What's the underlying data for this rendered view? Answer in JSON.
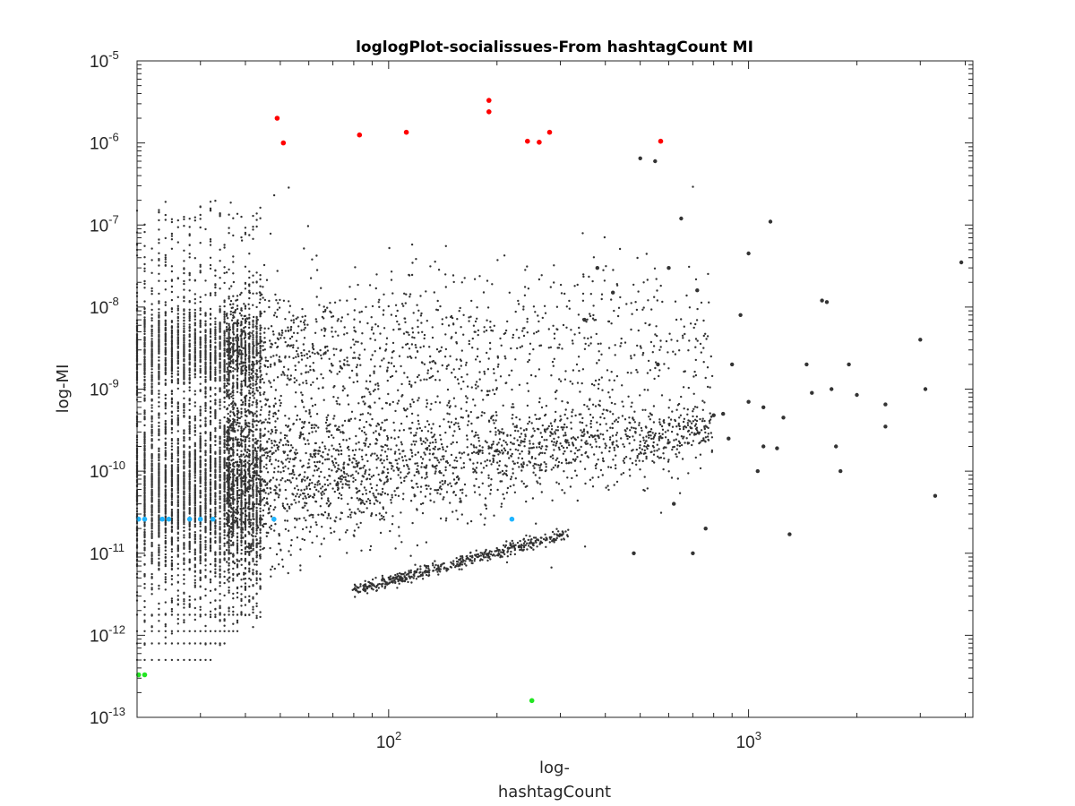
{
  "chart_data": {
    "type": "scatter",
    "title": "loglogPlot-socialissues-From hashtagCount MI",
    "xlabel_lines": [
      "log-",
      "hashtagCount"
    ],
    "ylabel": "log-MI",
    "xscale": "log",
    "yscale": "log",
    "xlim": [
      20,
      4200
    ],
    "ylim": [
      1e-13,
      1e-05
    ],
    "x_ticks": [
      {
        "value": 100,
        "base": "10",
        "exp": "2"
      },
      {
        "value": 1000,
        "base": "10",
        "exp": "3"
      }
    ],
    "y_ticks": [
      {
        "value": 1e-13,
        "base": "10",
        "exp": "-13"
      },
      {
        "value": 1e-12,
        "base": "10",
        "exp": "-12"
      },
      {
        "value": 1e-11,
        "base": "10",
        "exp": "-11"
      },
      {
        "value": 1e-10,
        "base": "10",
        "exp": "-10"
      },
      {
        "value": 1e-09,
        "base": "10",
        "exp": "-9"
      },
      {
        "value": 1e-08,
        "base": "10",
        "exp": "-8"
      },
      {
        "value": 1e-07,
        "base": "10",
        "exp": "-7"
      },
      {
        "value": 1e-06,
        "base": "10",
        "exp": "-6"
      },
      {
        "value": 1e-05,
        "base": "10",
        "exp": "-5"
      }
    ],
    "grid": false,
    "box": true,
    "series": [
      {
        "color": "#333333",
        "marker_size": 2.2,
        "note_bulk": "dense cloud of dark points (tens of thousands)",
        "points": [
          [
            3900,
            3.5e-08
          ],
          [
            3000,
            4e-09
          ],
          [
            3100,
            1e-09
          ],
          [
            3300,
            5e-11
          ],
          [
            2400,
            6.5e-10
          ],
          [
            2400,
            3.5e-10
          ],
          [
            2000,
            8.5e-10
          ],
          [
            1900,
            2e-09
          ],
          [
            1600,
            1.2e-08
          ],
          [
            1650,
            1.15e-08
          ],
          [
            1700,
            1e-09
          ],
          [
            1750,
            2e-10
          ],
          [
            1150,
            1.1e-07
          ],
          [
            1000,
            4.5e-08
          ],
          [
            900,
            2e-09
          ],
          [
            950,
            8e-09
          ],
          [
            1100,
            2e-10
          ],
          [
            1200,
            1.9e-10
          ],
          [
            1250,
            4.5e-10
          ],
          [
            1300,
            1.7e-11
          ],
          [
            1800,
            1e-10
          ],
          [
            1450,
            2e-09
          ],
          [
            1500,
            9e-10
          ],
          [
            700,
            1e-11
          ],
          [
            760,
            2e-11
          ],
          [
            720,
            1.6e-08
          ],
          [
            800,
            4.8e-10
          ],
          [
            850,
            5e-10
          ],
          [
            880,
            2.5e-10
          ],
          [
            620,
            4e-11
          ],
          [
            500,
            6.5e-07
          ],
          [
            550,
            6e-07
          ],
          [
            480,
            1e-11
          ],
          [
            420,
            1.5e-08
          ],
          [
            380,
            3e-08
          ],
          [
            350,
            7e-09
          ],
          [
            600,
            3e-08
          ],
          [
            650,
            1.2e-07
          ],
          [
            560,
            2e-09
          ],
          [
            1000,
            7e-10
          ],
          [
            1060,
            1e-10
          ],
          [
            1100,
            6e-10
          ]
        ]
      },
      {
        "name": "",
        "color": "#ff0000",
        "marker_size": 2.8,
        "points": [
          [
            49,
            2e-06
          ],
          [
            51,
            1e-06
          ],
          [
            83,
            1.25e-06
          ],
          [
            112,
            1.35e-06
          ],
          [
            190,
            3.3e-06
          ],
          [
            190,
            2.4e-06
          ],
          [
            243,
            1.05e-06
          ],
          [
            262,
            1.02e-06
          ],
          [
            280,
            1.35e-06
          ],
          [
            570,
            1.05e-06
          ]
        ]
      },
      {
        "name": "",
        "color": "#1eb4ff",
        "marker_size": 2.8,
        "points": [
          [
            20.2,
            2.6e-11
          ],
          [
            21,
            2.6e-11
          ],
          [
            23.5,
            2.6e-11
          ],
          [
            24.5,
            2.6e-11
          ],
          [
            28,
            2.6e-11
          ],
          [
            30,
            2.6e-11
          ],
          [
            32.5,
            2.6e-11
          ],
          [
            48,
            2.6e-11
          ],
          [
            220,
            2.6e-11
          ]
        ]
      },
      {
        "name": "",
        "color": "#22e622",
        "marker_size": 2.8,
        "points": [
          [
            20.2,
            3.3e-13
          ],
          [
            21,
            3.3e-13
          ],
          [
            250,
            1.6e-13
          ]
        ]
      }
    ]
  }
}
